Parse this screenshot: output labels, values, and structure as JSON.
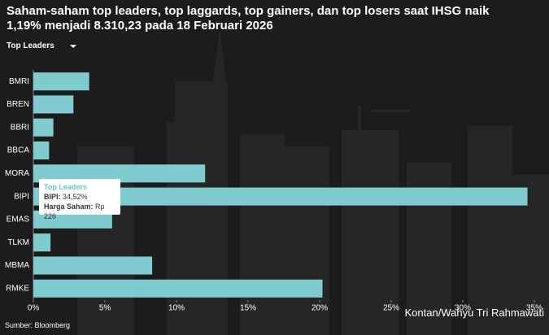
{
  "chart_data": {
    "type": "bar",
    "orientation": "horizontal",
    "title": "Saham-saham top leaders, top laggards, top gainers, dan top losers saat IHSG naik 1,19% menjadi 8.310,23 pada 18 Februari 2026",
    "dropdown": "Top Leaders",
    "categories": [
      "BMRI",
      "BREN",
      "BBRI",
      "BBCA",
      "MORA",
      "BIPI",
      "EMAS",
      "TLKM",
      "MBMA",
      "RMKE"
    ],
    "values": [
      3.9,
      2.8,
      1.4,
      1.1,
      12.0,
      34.52,
      5.5,
      1.2,
      8.3,
      20.2
    ],
    "color": "#80cbd0",
    "xlim": [
      0,
      35
    ],
    "xticks": [
      {
        "value": 0,
        "label": "0%"
      },
      {
        "value": 5,
        "label": "5%"
      },
      {
        "value": 10,
        "label": "10%"
      },
      {
        "value": 15,
        "label": "15%"
      },
      {
        "value": 20,
        "label": "20%"
      },
      {
        "value": 25,
        "label": "25%"
      },
      {
        "value": 30,
        "label": "30%"
      },
      {
        "value": 35,
        "label": "35%"
      }
    ],
    "grid": false,
    "tooltip": {
      "title": "Top Leaders",
      "rows": [
        {
          "label": "BIPI:",
          "value": "34,52%"
        },
        {
          "label": "Harga Saham:",
          "value": "Rp 226"
        }
      ]
    },
    "source": "Sumber: Bloomberg",
    "credit": "Kontan/Wahyu Tri Rahmawati"
  }
}
